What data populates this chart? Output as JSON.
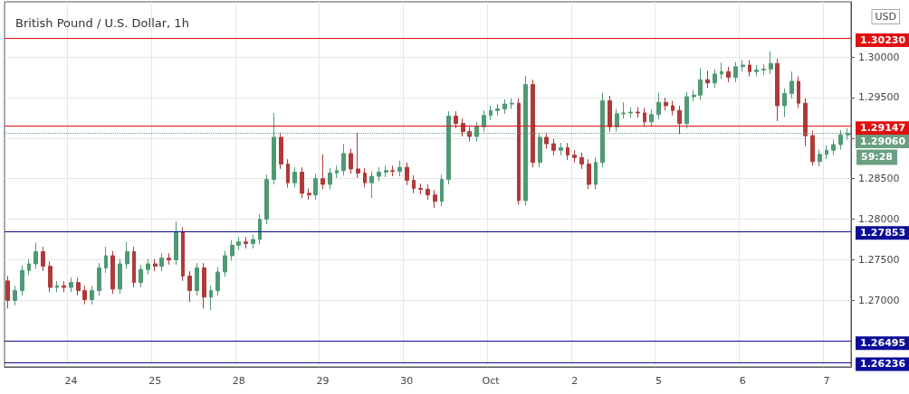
{
  "chart_data": {
    "type": "candlestick",
    "title": "British Pound / U.S. Dollar, 1h",
    "categories": [
      null,
      null,
      null,
      null,
      null,
      null,
      null,
      null,
      null,
      "24",
      null,
      null,
      null,
      null,
      null,
      null,
      null,
      null,
      null,
      null,
      null,
      "25",
      null,
      null,
      null,
      null,
      null,
      null,
      null,
      null,
      null,
      null,
      null,
      "28",
      null,
      null,
      null,
      null,
      null,
      null,
      null,
      null,
      null,
      null,
      null,
      "29",
      null,
      null,
      null,
      null,
      null,
      null,
      null,
      null,
      null,
      null,
      null,
      "30",
      null,
      null,
      null,
      null,
      null,
      null,
      null,
      null,
      null,
      null,
      null,
      "Oct",
      null,
      null,
      null,
      null,
      null,
      null,
      null,
      null,
      null,
      null,
      null,
      "2",
      null,
      null,
      null,
      null,
      null,
      null,
      null,
      null,
      null,
      null,
      null,
      "5",
      null,
      null,
      null,
      null,
      null,
      null,
      null,
      null,
      null,
      null,
      null,
      "6",
      null,
      null,
      null,
      null,
      null,
      null,
      null,
      null,
      null,
      null,
      null,
      "7",
      null,
      null,
      null
    ],
    "ohlc": [
      [
        1.2724,
        1.273,
        1.269,
        1.27
      ],
      [
        1.27,
        1.2718,
        1.2694,
        1.2712
      ],
      [
        1.2712,
        1.2743,
        1.2706,
        1.2737
      ],
      [
        1.2737,
        1.2751,
        1.2731,
        1.2745
      ],
      [
        1.2745,
        1.2771,
        1.2739,
        1.276
      ],
      [
        1.276,
        1.2766,
        1.2736,
        1.2742
      ],
      [
        1.2742,
        1.2748,
        1.271,
        1.2716
      ],
      [
        1.2716,
        1.2724,
        1.271,
        1.2718
      ],
      [
        1.2718,
        1.2724,
        1.271,
        1.2716
      ],
      [
        1.2716,
        1.2728,
        1.271,
        1.2722
      ],
      [
        1.2722,
        1.2728,
        1.2706,
        1.2712
      ],
      [
        1.2712,
        1.2718,
        1.2695,
        1.2701
      ],
      [
        1.2701,
        1.2718,
        1.2695,
        1.2712
      ],
      [
        1.2712,
        1.2746,
        1.2706,
        1.274
      ],
      [
        1.274,
        1.2766,
        1.2734,
        1.2755
      ],
      [
        1.2755,
        1.2761,
        1.2708,
        1.2714
      ],
      [
        1.2714,
        1.2751,
        1.2708,
        1.2745
      ],
      [
        1.2745,
        1.2772,
        1.2739,
        1.276
      ],
      [
        1.276,
        1.2766,
        1.2716,
        1.2722
      ],
      [
        1.2722,
        1.2744,
        1.2716,
        1.2738
      ],
      [
        1.2738,
        1.2751,
        1.2732,
        1.2745
      ],
      [
        1.2745,
        1.2751,
        1.2736,
        1.2742
      ],
      [
        1.2742,
        1.2758,
        1.2736,
        1.2752
      ],
      [
        1.2752,
        1.2758,
        1.2744,
        1.275
      ],
      [
        1.275,
        1.2797,
        1.2744,
        1.2784
      ],
      [
        1.2784,
        1.279,
        1.2724,
        1.273
      ],
      [
        1.273,
        1.2736,
        1.2698,
        1.2712
      ],
      [
        1.2712,
        1.2746,
        1.2706,
        1.274
      ],
      [
        1.274,
        1.2746,
        1.269,
        1.2704
      ],
      [
        1.2704,
        1.2718,
        1.2688,
        1.2712
      ],
      [
        1.2712,
        1.2741,
        1.2706,
        1.2735
      ],
      [
        1.2735,
        1.2761,
        1.2729,
        1.2755
      ],
      [
        1.2755,
        1.2774,
        1.2749,
        1.2768
      ],
      [
        1.2768,
        1.2778,
        1.2762,
        1.2772
      ],
      [
        1.2772,
        1.2778,
        1.2764,
        1.277
      ],
      [
        1.277,
        1.2781,
        1.2764,
        1.2775
      ],
      [
        1.2775,
        1.2806,
        1.2769,
        1.28
      ],
      [
        1.28,
        1.2855,
        1.2794,
        1.2849
      ],
      [
        1.2849,
        1.2931,
        1.2843,
        1.2901
      ],
      [
        1.2901,
        1.2907,
        1.2862,
        1.2868
      ],
      [
        1.2868,
        1.2874,
        1.2839,
        1.2845
      ],
      [
        1.2845,
        1.2864,
        1.2839,
        1.2858
      ],
      [
        1.2858,
        1.2864,
        1.2826,
        1.2832
      ],
      [
        1.2832,
        1.2838,
        1.2824,
        1.283
      ],
      [
        1.283,
        1.2856,
        1.2824,
        1.285
      ],
      [
        1.285,
        1.288,
        1.2837,
        1.2843
      ],
      [
        1.2843,
        1.2863,
        1.2837,
        1.2857
      ],
      [
        1.2857,
        1.2866,
        1.2851,
        1.286
      ],
      [
        1.286,
        1.2893,
        1.2854,
        1.2881
      ],
      [
        1.2881,
        1.2887,
        1.2856,
        1.2862
      ],
      [
        1.2862,
        1.2906,
        1.2851,
        1.2857
      ],
      [
        1.2857,
        1.2863,
        1.2839,
        1.2845
      ],
      [
        1.2845,
        1.2859,
        1.2826,
        1.2853
      ],
      [
        1.2853,
        1.2864,
        1.2847,
        1.2858
      ],
      [
        1.2858,
        1.2866,
        1.2852,
        1.286
      ],
      [
        1.286,
        1.2866,
        1.2853,
        1.2859
      ],
      [
        1.2859,
        1.2872,
        1.2853,
        1.2864
      ],
      [
        1.2864,
        1.287,
        1.2842,
        1.2848
      ],
      [
        1.2848,
        1.2854,
        1.2832,
        1.2838
      ],
      [
        1.2838,
        1.2844,
        1.2831,
        1.2837
      ],
      [
        1.2837,
        1.2843,
        1.2824,
        1.283
      ],
      [
        1.283,
        1.2836,
        1.2814,
        1.2822
      ],
      [
        1.2822,
        1.2855,
        1.2816,
        1.2849
      ],
      [
        1.2849,
        1.2933,
        1.2843,
        1.2927
      ],
      [
        1.2927,
        1.2933,
        1.2912,
        1.2918
      ],
      [
        1.2918,
        1.2924,
        1.2902,
        1.2908
      ],
      [
        1.2908,
        1.2914,
        1.2896,
        1.2902
      ],
      [
        1.2902,
        1.292,
        1.2896,
        1.2914
      ],
      [
        1.2914,
        1.2934,
        1.2908,
        1.2928
      ],
      [
        1.2928,
        1.294,
        1.2922,
        1.2934
      ],
      [
        1.2934,
        1.2942,
        1.2928,
        1.2936
      ],
      [
        1.2936,
        1.2948,
        1.293,
        1.2942
      ],
      [
        1.2942,
        1.2949,
        1.2936,
        1.2943
      ],
      [
        1.2943,
        1.2949,
        1.2818,
        1.2823
      ],
      [
        1.2823,
        1.2977,
        1.2817,
        1.2966
      ],
      [
        1.2966,
        1.2972,
        1.2864,
        1.287
      ],
      [
        1.287,
        1.2907,
        1.2864,
        1.2901
      ],
      [
        1.2901,
        1.2907,
        1.2887,
        1.2893
      ],
      [
        1.2893,
        1.2899,
        1.2879,
        1.2885
      ],
      [
        1.2885,
        1.2894,
        1.2879,
        1.2888
      ],
      [
        1.2888,
        1.2894,
        1.2873,
        1.2879
      ],
      [
        1.2879,
        1.2885,
        1.287,
        1.2876
      ],
      [
        1.2876,
        1.2882,
        1.2862,
        1.2868
      ],
      [
        1.2868,
        1.2874,
        1.2837,
        1.2843
      ],
      [
        1.2843,
        1.2876,
        1.2837,
        1.287
      ],
      [
        1.287,
        1.2956,
        1.2864,
        1.2946
      ],
      [
        1.2946,
        1.2952,
        1.2908,
        1.2914
      ],
      [
        1.2914,
        1.2936,
        1.2908,
        1.293
      ],
      [
        1.293,
        1.2944,
        1.2924,
        1.2931
      ],
      [
        1.2931,
        1.2938,
        1.2925,
        1.2932
      ],
      [
        1.2932,
        1.2938,
        1.2925,
        1.2931
      ],
      [
        1.2931,
        1.2937,
        1.2914,
        1.292
      ],
      [
        1.292,
        1.2935,
        1.2914,
        1.2929
      ],
      [
        1.2929,
        1.2956,
        1.2923,
        1.2944
      ],
      [
        1.2944,
        1.295,
        1.2934,
        1.294
      ],
      [
        1.294,
        1.2946,
        1.2928,
        1.2934
      ],
      [
        1.2934,
        1.294,
        1.2905,
        1.2918
      ],
      [
        1.2918,
        1.2957,
        1.2912,
        1.2951
      ],
      [
        1.2951,
        1.2959,
        1.2945,
        1.2953
      ],
      [
        1.2953,
        1.2986,
        1.2947,
        1.2972
      ],
      [
        1.2972,
        1.2983,
        1.2962,
        1.2968
      ],
      [
        1.2968,
        1.2985,
        1.2962,
        1.2979
      ],
      [
        1.2979,
        1.2993,
        1.2973,
        1.2982
      ],
      [
        1.2982,
        1.2988,
        1.2969,
        1.2975
      ],
      [
        1.2975,
        1.2994,
        1.2969,
        1.2988
      ],
      [
        1.2988,
        1.2996,
        1.2982,
        1.299
      ],
      [
        1.299,
        1.2996,
        1.2976,
        1.2982
      ],
      [
        1.2982,
        1.299,
        1.2976,
        1.2984
      ],
      [
        1.2984,
        1.2991,
        1.2978,
        1.2985
      ],
      [
        1.2985,
        1.3007,
        1.2979,
        1.2992
      ],
      [
        1.2992,
        1.2998,
        1.2921,
        1.294
      ],
      [
        1.294,
        1.2961,
        1.2926,
        1.2955
      ],
      [
        1.2955,
        1.2982,
        1.2949,
        1.297
      ],
      [
        1.297,
        1.2976,
        1.2937,
        1.2943
      ],
      [
        1.2943,
        1.2949,
        1.289,
        1.2903
      ],
      [
        1.2903,
        1.2909,
        1.2866,
        1.2871
      ],
      [
        1.2871,
        1.2886,
        1.2865,
        1.288
      ],
      [
        1.288,
        1.2891,
        1.2874,
        1.2885
      ],
      [
        1.2885,
        1.2898,
        1.2879,
        1.2892
      ],
      [
        1.2892,
        1.291,
        1.2886,
        1.2904
      ],
      [
        1.2904,
        1.2912,
        1.2898,
        1.2906
      ]
    ],
    "colors": [
      "#b03a3a",
      "#4f9a74",
      "#4f9a74",
      "#4f9a74",
      "#4f9a74",
      "#b03a3a",
      "#b03a3a",
      "#4f9a74",
      "#b03a3a",
      "#4f9a74",
      "#b03a3a",
      "#b03a3a",
      "#4f9a74",
      "#4f9a74",
      "#4f9a74",
      "#b03a3a",
      "#4f9a74",
      "#4f9a74",
      "#b03a3a",
      "#4f9a74",
      "#4f9a74",
      "#b03a3a",
      "#4f9a74",
      "#b03a3a",
      "#4f9a74",
      "#b03a3a",
      "#b03a3a",
      "#4f9a74",
      "#b03a3a",
      "#4f9a74",
      "#4f9a74",
      "#4f9a74",
      "#4f9a74",
      "#4f9a74",
      "#b03a3a",
      "#4f9a74",
      "#4f9a74",
      "#4f9a74",
      "#4f9a74",
      "#b03a3a",
      "#b03a3a",
      "#4f9a74",
      "#b03a3a",
      "#b03a3a",
      "#4f9a74",
      "#b03a3a",
      "#4f9a74",
      "#4f9a74",
      "#4f9a74",
      "#b03a3a",
      "#b03a3a",
      "#b03a3a",
      "#4f9a74",
      "#4f9a74",
      "#4f9a74",
      "#b03a3a",
      "#4f9a74",
      "#b03a3a",
      "#b03a3a",
      "#b03a3a",
      "#b03a3a",
      "#b03a3a",
      "#4f9a74",
      "#4f9a74",
      "#b03a3a",
      "#b03a3a",
      "#b03a3a",
      "#4f9a74",
      "#4f9a74",
      "#4f9a74",
      "#4f9a74",
      "#4f9a74",
      "#4f9a74",
      "#b03a3a",
      "#4f9a74",
      "#b03a3a",
      "#4f9a74",
      "#b03a3a",
      "#b03a3a",
      "#4f9a74",
      "#b03a3a",
      "#b03a3a",
      "#b03a3a",
      "#b03a3a",
      "#4f9a74",
      "#4f9a74",
      "#b03a3a",
      "#4f9a74",
      "#4f9a74",
      "#4f9a74",
      "#b03a3a",
      "#b03a3a",
      "#4f9a74",
      "#4f9a74",
      "#b03a3a",
      "#b03a3a",
      "#b03a3a",
      "#4f9a74",
      "#4f9a74",
      "#4f9a74",
      "#b03a3a",
      "#4f9a74",
      "#4f9a74",
      "#b03a3a",
      "#4f9a74",
      "#4f9a74",
      "#b03a3a",
      "#4f9a74",
      "#4f9a74",
      "#4f9a74",
      "#b03a3a",
      "#4f9a74",
      "#4f9a74",
      "#b03a3a",
      "#b03a3a",
      "#b03a3a",
      "#4f9a74",
      "#4f9a74",
      "#4f9a74",
      "#4f9a74",
      "#4f9a74"
    ],
    "ylim": [
      1.2618,
      1.3068
    ],
    "yticks": [
      {
        "value": 1.27,
        "label": "1.27000"
      },
      {
        "value": 1.275,
        "label": "1.27500"
      },
      {
        "value": 1.28,
        "label": "1.28000"
      },
      {
        "value": 1.285,
        "label": "1.28500"
      },
      {
        "value": 1.29,
        "label": null
      },
      {
        "value": 1.295,
        "label": "1.29500"
      },
      {
        "value": 1.3,
        "label": "1.30000"
      }
    ],
    "grid": true,
    "ref_lines": [
      {
        "axis": "y",
        "value": 1.3023,
        "label": "1.30230",
        "color": "#e01010"
      },
      {
        "axis": "y",
        "value": 1.29147,
        "label": "1.29147",
        "color": "#e01010"
      },
      {
        "axis": "y",
        "value": 1.2906,
        "label": "1.29060",
        "color": "#6a9f82",
        "line_style": "dotted"
      },
      {
        "axis": "y",
        "value": 1.27853,
        "label": "1.27853",
        "color": "#0c0c9a"
      },
      {
        "axis": "y",
        "value": 1.26495,
        "label": "1.26495",
        "color": "#0c0c9a"
      },
      {
        "axis": "y",
        "value": 1.26236,
        "label": "1.26236",
        "color": "#0c0c9a"
      }
    ],
    "annotations": [
      "USD",
      "59:28"
    ]
  }
}
